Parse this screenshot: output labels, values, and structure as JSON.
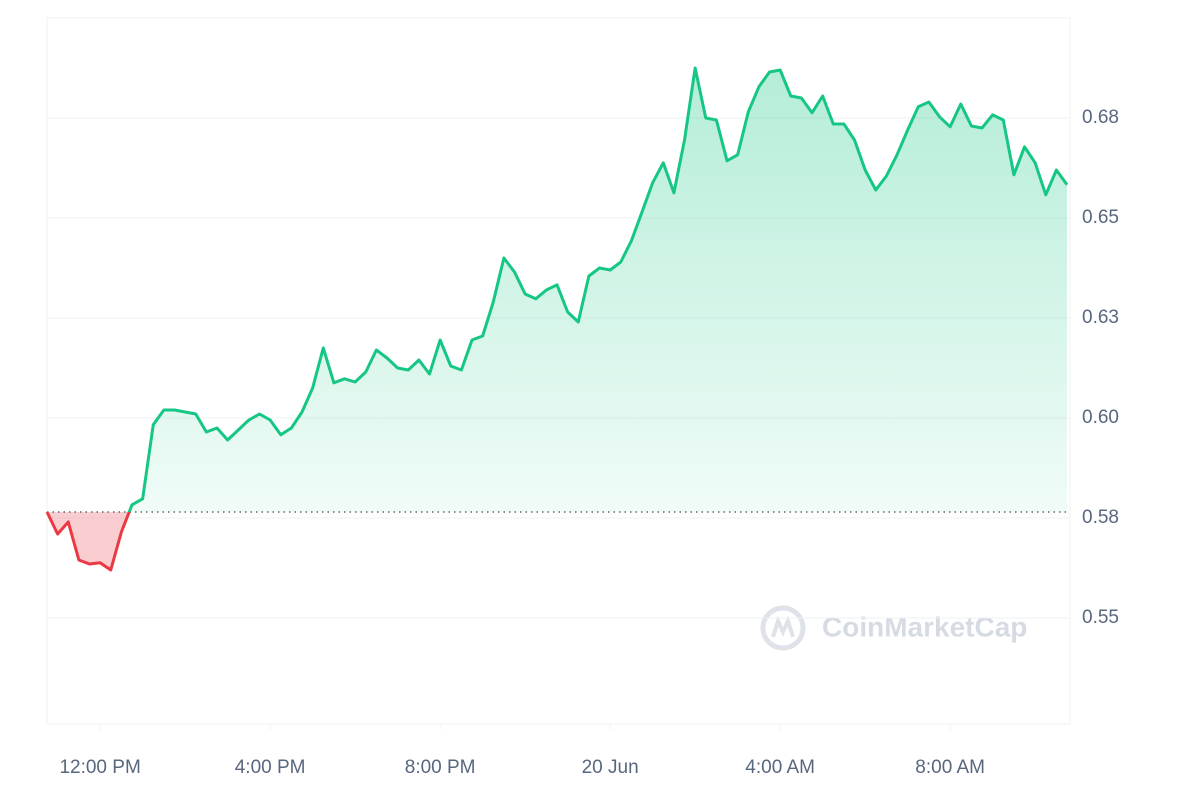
{
  "chart_data": {
    "type": "line",
    "watermark": "CoinMarketCap",
    "x": [
      10.75,
      11,
      11.25,
      11.5,
      11.75,
      12,
      12.25,
      12.5,
      12.75,
      13,
      13.25,
      13.5,
      13.75,
      14,
      14.25,
      14.5,
      14.75,
      15,
      15.25,
      15.5,
      15.75,
      16,
      16.25,
      16.5,
      16.75,
      17,
      17.25,
      17.5,
      17.75,
      18,
      18.25,
      18.5,
      18.75,
      19,
      19.25,
      19.5,
      19.75,
      20,
      20.25,
      20.5,
      20.75,
      21,
      21.25,
      21.5,
      21.75,
      22,
      22.25,
      22.5,
      22.75,
      23,
      23.25,
      23.5,
      23.75,
      24,
      24.25,
      24.5,
      24.75,
      25,
      25.25,
      25.5,
      25.75,
      26,
      26.25,
      26.5,
      26.75,
      27,
      27.25,
      27.5,
      27.75,
      28,
      28.25,
      28.5,
      28.75,
      29,
      29.25,
      29.5,
      29.75,
      30,
      30.25,
      30.5,
      30.75,
      31,
      31.25,
      31.5,
      31.75,
      32,
      32.25,
      32.5,
      32.75,
      33,
      33.25,
      33.5,
      33.75,
      34,
      34.25,
      34.5,
      34.75
    ],
    "series": [
      {
        "color": "#16c784",
        "down_color": "#ea3943",
        "values": [
          0.5765,
          0.571,
          0.574,
          0.5645,
          0.5635,
          0.5638,
          0.562,
          0.5715,
          0.5783,
          0.5798,
          0.5983,
          0.602,
          0.602,
          0.6015,
          0.601,
          0.5965,
          0.5975,
          0.5945,
          0.597,
          0.5995,
          0.601,
          0.5995,
          0.5958,
          0.5975,
          0.6015,
          0.6075,
          0.6175,
          0.6088,
          0.6098,
          0.609,
          0.6115,
          0.617,
          0.615,
          0.6125,
          0.612,
          0.6145,
          0.611,
          0.6195,
          0.613,
          0.612,
          0.6195,
          0.6205,
          0.629,
          0.64,
          0.6365,
          0.631,
          0.6298,
          0.632,
          0.6333,
          0.6265,
          0.624,
          0.6355,
          0.6375,
          0.637,
          0.639,
          0.6443,
          0.6515,
          0.6588,
          0.6638,
          0.6563,
          0.6695,
          0.6875,
          0.675,
          0.6745,
          0.6643,
          0.6658,
          0.6765,
          0.6828,
          0.6865,
          0.687,
          0.6805,
          0.68,
          0.6763,
          0.6805,
          0.6735,
          0.6735,
          0.6695,
          0.662,
          0.657,
          0.6605,
          0.6658,
          0.672,
          0.6778,
          0.679,
          0.6753,
          0.6728,
          0.6785,
          0.673,
          0.6725,
          0.6758,
          0.6745,
          0.6608,
          0.6678,
          0.6638,
          0.6558,
          0.662,
          0.6583
        ]
      }
    ],
    "xlim": [
      10.75,
      34.82
    ],
    "ylim": [
      0.5235,
      0.7
    ],
    "xticks": [
      {
        "value": 12,
        "label": "12:00 PM"
      },
      {
        "value": 16,
        "label": "4:00 PM"
      },
      {
        "value": 20,
        "label": "8:00 PM"
      },
      {
        "value": 24,
        "label": "20 Jun"
      },
      {
        "value": 28,
        "label": "4:00 AM"
      },
      {
        "value": 32,
        "label": "8:00 AM"
      }
    ],
    "yticks": [
      0.55,
      {
        "value": 0.575,
        "label": "0.58"
      },
      {
        "value": 0.6,
        "label": "0.60"
      },
      {
        "value": 0.625,
        "label": "0.63"
      },
      0.65,
      {
        "value": 0.675,
        "label": "0.68"
      }
    ],
    "grid": true
  }
}
